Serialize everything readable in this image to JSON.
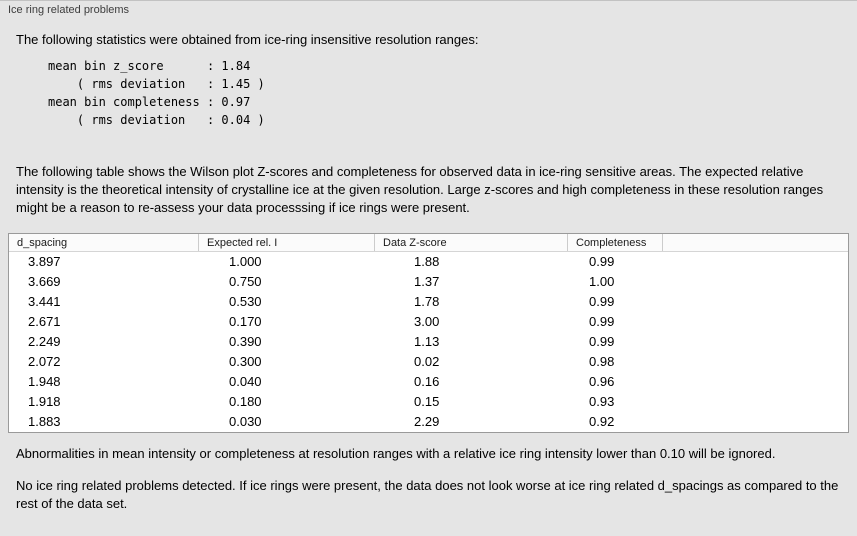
{
  "panel": {
    "title": "Ice ring related problems"
  },
  "intro": "The following statistics were obtained from ice-ring insensitive resolution ranges:",
  "stats_text": "mean bin z_score      : 1.84\n    ( rms deviation   : 1.45 )\nmean bin completeness : 0.97\n    ( rms deviation   : 0.04 )",
  "description": "The following table shows the Wilson plot Z-scores and completeness for observed data in ice-ring sensitive areas. The expected relative intensity is the theoretical intensity of crystalline ice at the given resolution. Large z-scores and high completeness in these resolution ranges might be a reason to re-assess your data processsing if ice rings were present.",
  "table": {
    "columns": [
      "d_spacing",
      "Expected rel. I",
      "Data Z-score",
      "Completeness"
    ],
    "rows": [
      [
        "3.897",
        "1.000",
        "1.88",
        "0.99"
      ],
      [
        "3.669",
        "0.750",
        "1.37",
        "1.00"
      ],
      [
        "3.441",
        "0.530",
        "1.78",
        "0.99"
      ],
      [
        "2.671",
        "0.170",
        "3.00",
        "0.99"
      ],
      [
        "2.249",
        "0.390",
        "1.13",
        "0.99"
      ],
      [
        "2.072",
        "0.300",
        "0.02",
        "0.98"
      ],
      [
        "1.948",
        "0.040",
        "0.16",
        "0.96"
      ],
      [
        "1.918",
        "0.180",
        "0.15",
        "0.93"
      ],
      [
        "1.883",
        "0.030",
        "2.29",
        "0.92"
      ]
    ]
  },
  "note_ignore": "Abnormalities in mean intensity or completeness at resolution ranges with a relative ice ring intensity lower than 0.10 will be ignored.",
  "conclusion": "No ice ring related problems detected. If ice rings were present, the data does not look worse at ice ring related d_spacings as compared to the rest of the data set."
}
